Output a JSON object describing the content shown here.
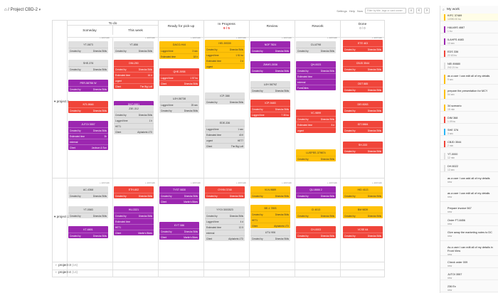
{
  "header": {
    "breadcrumb": "/ Project CBD-2",
    "links": [
      "Settings",
      "Help",
      "Now"
    ],
    "filter_placeholder": "Filter by title, tags or card owner",
    "prev": "<",
    "next": ">",
    "more": "⋮"
  },
  "columns": {
    "todo": "To do",
    "someday": "Someday",
    "thisweek": "This week",
    "ready": "Ready for pick-up",
    "inprogress": "In Progress",
    "inprogress_wip": "9 / 5",
    "review": "Review",
    "rework": "Rework",
    "done": "Done",
    "done_count": "0 / 0"
  },
  "add_task": "+ add task",
  "lanes": {
    "p1": "project 1",
    "p2": "project 2",
    "p3": "project 3",
    "p3_count": "(16)",
    "p4": "project 4",
    "p4_count": "(14)"
  },
  "fields": {
    "created_by": "Created by",
    "owner": "Dinesha Stills",
    "logged": "Logged time",
    "estimated": "Estimated time",
    "urgent": "urgent",
    "external": "external",
    "client": "Client"
  },
  "cards": {
    "a1": {
      "title": "YT-0873"
    },
    "a2": {
      "title": "SHE-376",
      "badge": "4/8"
    },
    "a3": {
      "title": "PER-58756 W"
    },
    "a4": {
      "title": "NTI-9846"
    },
    "a5": {
      "title": "JUTOI 3557",
      "est": "3h",
      "client": "Jackson & Son"
    },
    "b1": {
      "title": "YT-858"
    },
    "b2": {
      "title": "DNI-250",
      "est": "16 d",
      "client": "The Big Loft"
    },
    "b3": {
      "title": "DNT-0881"
    },
    "b4": {
      "title": "Z3E-312",
      "logged": "1 h",
      "ref": "HET1",
      "client": "Alphabets LTD"
    },
    "c1": {
      "title": "DACO-H44",
      "logged": "3 sec",
      "est": "18 h"
    },
    "c2": {
      "title": "QHE-3938",
      "logged": "1 57 bu",
      "client": "Dinesha Stills"
    },
    "c3": {
      "title": "UJH-58738",
      "logged": "25 sec"
    },
    "d1": {
      "title": "HEI-59339",
      "logged": "1 51 bu",
      "est": "2 d"
    },
    "d2": {
      "title": "ICP-388"
    },
    "d3": {
      "title": "EDE-336",
      "logged": "1 sec",
      "est": "40 fl",
      "ref": "HET7",
      "client": "The Big Loft"
    },
    "e1": {
      "title": "NOF 7824"
    },
    "e2": {
      "title": "ZMMS-3038"
    },
    "e3": {
      "title": "UJH 5879Z"
    },
    "e4": {
      "title": "ICP-9483",
      "badge": "12",
      "logged": "7 35 bu"
    },
    "f1": {
      "title": "CU-8798"
    },
    "f2": {
      "title": "QH-0023",
      "client": "FormDbles"
    },
    "f3": {
      "title": "VC-9899",
      "est": "8 d"
    },
    "f4": {
      "title": "LUSPEE-379874"
    },
    "g1": {
      "title": "ETE 4£3"
    },
    "g2": {
      "title": "CBJD 3544"
    },
    "g3": {
      "title": "ODT 885"
    },
    "g4": {
      "title": "DEI 8263"
    },
    "g5": {
      "title": "IDT-9884"
    },
    "g6": {
      "title": "SH-333"
    },
    "h1": {
      "title": "AC-4368"
    },
    "h2": {
      "title": "YT-0583"
    },
    "h3": {
      "title": "KT-6801"
    },
    "i1": {
      "title": "ETH-602"
    },
    "i2": {
      "title": "HU-3321",
      "ref": "HET1",
      "client": "Martin's Bikes"
    },
    "j1": {
      "title": "TYST 0830",
      "client": "Martin's Bikes"
    },
    "j2": {
      "title": "KYT 086",
      "client": "Martin's Bikes"
    },
    "k1": {
      "title": "OYHN 3748"
    },
    "k2": {
      "title": "YYOI 3003523",
      "logged": "4 d",
      "est": "12.5",
      "client": "Alphabets LTD"
    },
    "l1": {
      "title": "VLN-9889"
    },
    "l2": {
      "title": "BE-1 7893",
      "ref": "HET1",
      "client": "Alphabets LTD"
    },
    "l3": {
      "title": "UTU 906"
    },
    "m1": {
      "title": "QU-8666 2"
    },
    "m2": {
      "title": "CI 4013"
    },
    "m3": {
      "title": "CH-0003"
    },
    "n1": {
      "title": "HID 4113"
    },
    "n2": {
      "title": "BM 9839"
    },
    "n3": {
      "title": "VCSE 64"
    },
    "n4": {
      "title": "DHI 7713"
    }
  },
  "panel": {
    "title": "My work",
    "items": [
      {
        "name": "KIFC 37469",
        "sub": "12090.00 bu",
        "color": "#ffc107"
      },
      {
        "name": "HAU49S 4687",
        "sub": "1 bu",
        "color": "#9c27b0"
      },
      {
        "name": "ILAHFS 4683",
        "sub": "13 sec",
        "color": "#9c27b0"
      },
      {
        "name": "EDS 336",
        "sub": "22.63 bu",
        "color": "#f0453a"
      },
      {
        "name": "NEI 89880",
        "sub": "242.21 bu",
        "color": "#e0e0e0"
      },
      {
        "name": "as a user I can edit all of my details",
        "sub": "9 sec",
        "color": "#ffc107"
      },
      {
        "name": "prepare the presentation for MCY",
        "sub": "54 sec",
        "color": "#ffc107"
      },
      {
        "name": "34 scenario",
        "sub": "15 min",
        "color": "#ffc107"
      },
      {
        "name": "DIM 368",
        "sub": "1.09 bu",
        "color": "#f0453a"
      },
      {
        "name": "SHE 376",
        "sub": "3 sec",
        "color": "#29b6f6"
      },
      {
        "name": "CBJD 3544",
        "sub": "2 min",
        "color": "#f0453a"
      },
      {
        "name": "YT-0000",
        "sub": "12 min",
        "color": "#e0e0e0"
      },
      {
        "name": "DH 8022",
        "sub": "13 sec",
        "color": "#e0e0e0"
      },
      {
        "name": "as a user I can add all of my details",
        "sub": "new",
        "color": ""
      },
      {
        "name": "as a user I can edit all of my details",
        "sub": "new",
        "color": ""
      },
      {
        "name": "Prepare invoice 567",
        "sub": "new",
        "color": ""
      },
      {
        "name": "Order FT-8456",
        "sub": "new",
        "color": ""
      },
      {
        "name": "Give away the marketing notes to DC",
        "sub": "new",
        "color": ""
      },
      {
        "name": "As a user I can edit all of my details in Front View",
        "sub": "new",
        "color": ""
      },
      {
        "name": "Check order 009",
        "sub": "new",
        "color": ""
      },
      {
        "name": "JUTOI 3557",
        "sub": "new",
        "color": ""
      },
      {
        "name": "236 Ex",
        "sub": "new",
        "color": ""
      }
    ]
  }
}
